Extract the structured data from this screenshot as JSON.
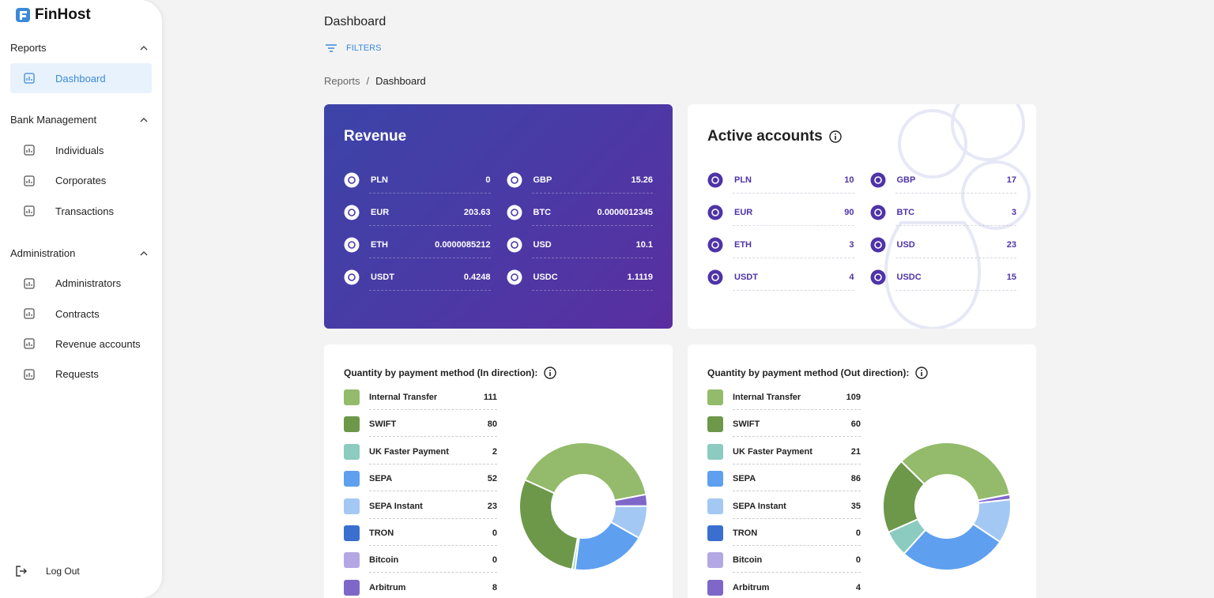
{
  "sidebar": {
    "brand": "FinHost",
    "sections": [
      {
        "title": "Reports",
        "items": [
          "Dashboard"
        ]
      },
      {
        "title": "Bank Management",
        "items": [
          "Individuals",
          "Corporates",
          "Transactions"
        ]
      },
      {
        "title": "Administration",
        "items": [
          "Administrators",
          "Contracts",
          "Revenue accounts",
          "Requests"
        ]
      }
    ],
    "logout": "Log Out"
  },
  "header": {
    "title": "Dashboard",
    "filters": "FILTERS",
    "breadcrumb": [
      "Reports",
      "Dashboard"
    ],
    "breadcrumb_separator": "/"
  },
  "revenue": {
    "title": "Revenue",
    "rows": [
      {
        "currency": "PLN",
        "amount": "0"
      },
      {
        "currency": "GBP",
        "amount": "15.26"
      },
      {
        "currency": "EUR",
        "amount": "203.63"
      },
      {
        "currency": "BTC",
        "amount": "0.0000012345"
      },
      {
        "currency": "ETH",
        "amount": "0.0000085212"
      },
      {
        "currency": "USD",
        "amount": "10.1"
      },
      {
        "currency": "USDT",
        "amount": "0.4248"
      },
      {
        "currency": "USDC",
        "amount": "1.1119"
      }
    ]
  },
  "active_accounts": {
    "title": "Active accounts",
    "rows": [
      {
        "currency": "PLN",
        "amount": "10"
      },
      {
        "currency": "GBP",
        "amount": "17"
      },
      {
        "currency": "EUR",
        "amount": "90"
      },
      {
        "currency": "BTC",
        "amount": "3"
      },
      {
        "currency": "ETH",
        "amount": "3"
      },
      {
        "currency": "USD",
        "amount": "23"
      },
      {
        "currency": "USDT",
        "amount": "4"
      },
      {
        "currency": "USDC",
        "amount": "15"
      }
    ]
  },
  "chart_data": [
    {
      "type": "donut",
      "title": "Quantity by payment method (In direction):",
      "categories": [
        "Internal Transfer",
        "SWIFT",
        "UK Faster Payment",
        "SEPA",
        "SEPA Instant",
        "TRON",
        "Bitcoin",
        "Arbitrum"
      ],
      "values": [
        111,
        80,
        2,
        52,
        23,
        0,
        0,
        8
      ],
      "colors": [
        "#93bb6b",
        "#6d984a",
        "#8ccbbf",
        "#5e9ff0",
        "#a4c8f4",
        "#3a6fd0",
        "#b4a8e4",
        "#7e67c9"
      ]
    },
    {
      "type": "donut",
      "title": "Quantity by payment method (Out direction):",
      "categories": [
        "Internal Transfer",
        "SWIFT",
        "UK Faster Payment",
        "SEPA",
        "SEPA Instant",
        "TRON",
        "Bitcoin",
        "Arbitrum"
      ],
      "values": [
        109,
        60,
        21,
        86,
        35,
        0,
        0,
        4
      ],
      "colors": [
        "#93bb6b",
        "#6d984a",
        "#8ccbbf",
        "#5e9ff0",
        "#a4c8f4",
        "#3a6fd0",
        "#b4a8e4",
        "#7e67c9"
      ]
    }
  ]
}
